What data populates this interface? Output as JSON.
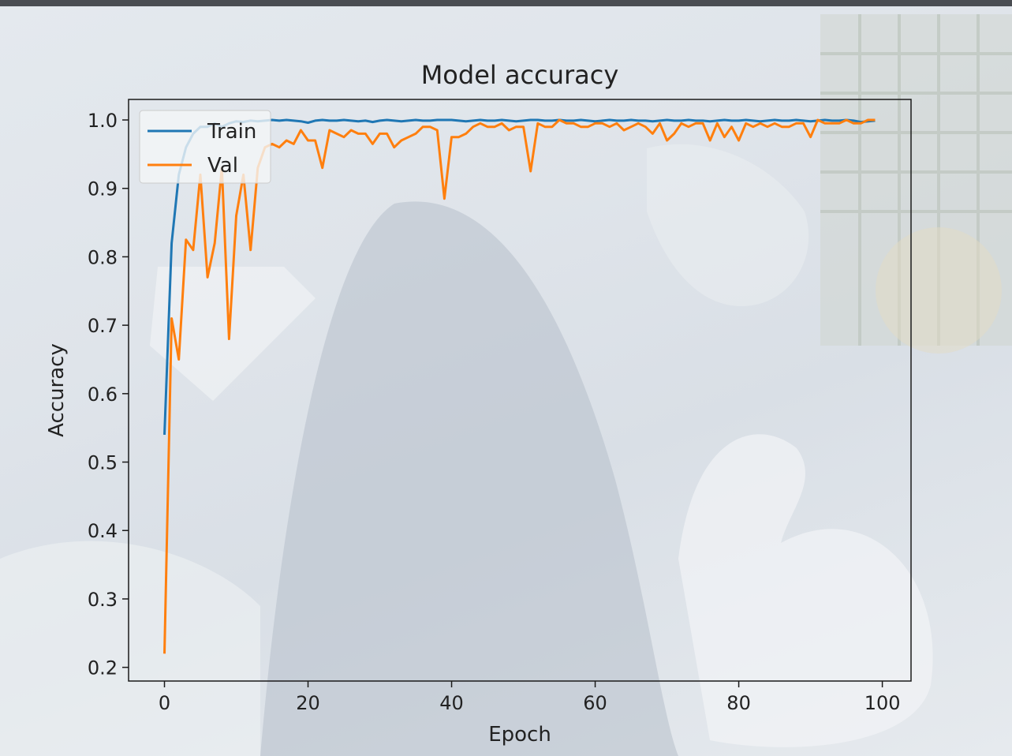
{
  "chart_data": {
    "type": "line",
    "title": "Model accuracy",
    "xlabel": "Epoch",
    "ylabel": "Accuracy",
    "xlim": [
      -5,
      104
    ],
    "ylim": [
      0.18,
      1.03
    ],
    "xticks": [
      0,
      20,
      40,
      60,
      80,
      100
    ],
    "yticks": [
      0.2,
      0.3,
      0.4,
      0.5,
      0.6,
      0.7,
      0.8,
      0.9,
      1.0
    ],
    "legend_position": "top-left",
    "grid": false,
    "series": [
      {
        "name": "Train",
        "color": "#1f77b4",
        "x": [
          0,
          1,
          2,
          3,
          4,
          5,
          6,
          7,
          8,
          9,
          10,
          11,
          12,
          13,
          14,
          15,
          16,
          17,
          18,
          19,
          20,
          21,
          22,
          23,
          24,
          25,
          26,
          27,
          28,
          29,
          30,
          31,
          32,
          33,
          34,
          35,
          36,
          37,
          38,
          39,
          40,
          41,
          42,
          43,
          44,
          45,
          46,
          47,
          48,
          49,
          50,
          51,
          52,
          53,
          54,
          55,
          56,
          57,
          58,
          59,
          60,
          61,
          62,
          63,
          64,
          65,
          66,
          67,
          68,
          69,
          70,
          71,
          72,
          73,
          74,
          75,
          76,
          77,
          78,
          79,
          80,
          81,
          82,
          83,
          84,
          85,
          86,
          87,
          88,
          89,
          90,
          91,
          92,
          93,
          94,
          95,
          96,
          97,
          98,
          99
        ],
        "values": [
          0.54,
          0.82,
          0.92,
          0.96,
          0.98,
          0.99,
          0.99,
          0.995,
          0.99,
          0.995,
          0.998,
          0.997,
          0.999,
          0.998,
          0.999,
          1.0,
          0.999,
          1.0,
          0.999,
          0.998,
          0.996,
          0.999,
          1.0,
          0.999,
          0.999,
          1.0,
          0.999,
          0.998,
          0.999,
          0.997,
          0.999,
          1.0,
          0.999,
          0.998,
          0.999,
          1.0,
          0.999,
          0.999,
          1.0,
          1.0,
          1.0,
          0.999,
          0.998,
          0.999,
          1.0,
          0.999,
          0.999,
          1.0,
          0.999,
          0.998,
          0.999,
          1.0,
          1.0,
          0.999,
          0.999,
          1.0,
          0.999,
          0.999,
          1.0,
          0.999,
          0.998,
          0.999,
          1.0,
          0.999,
          0.999,
          1.0,
          0.999,
          0.999,
          0.998,
          0.999,
          1.0,
          0.999,
          0.999,
          1.0,
          0.999,
          0.999,
          0.998,
          0.999,
          1.0,
          0.999,
          0.999,
          1.0,
          0.999,
          0.998,
          0.999,
          1.0,
          0.999,
          0.999,
          1.0,
          0.999,
          0.998,
          0.999,
          1.0,
          0.999,
          0.999,
          1.0,
          0.999,
          0.997,
          0.998,
          0.999
        ]
      },
      {
        "name": "Val",
        "color": "#ff7f0e",
        "x": [
          0,
          1,
          2,
          3,
          4,
          5,
          6,
          7,
          8,
          9,
          10,
          11,
          12,
          13,
          14,
          15,
          16,
          17,
          18,
          19,
          20,
          21,
          22,
          23,
          24,
          25,
          26,
          27,
          28,
          29,
          30,
          31,
          32,
          33,
          34,
          35,
          36,
          37,
          38,
          39,
          40,
          41,
          42,
          43,
          44,
          45,
          46,
          47,
          48,
          49,
          50,
          51,
          52,
          53,
          54,
          55,
          56,
          57,
          58,
          59,
          60,
          61,
          62,
          63,
          64,
          65,
          66,
          67,
          68,
          69,
          70,
          71,
          72,
          73,
          74,
          75,
          76,
          77,
          78,
          79,
          80,
          81,
          82,
          83,
          84,
          85,
          86,
          87,
          88,
          89,
          90,
          91,
          92,
          93,
          94,
          95,
          96,
          97,
          98,
          99
        ],
        "values": [
          0.22,
          0.71,
          0.65,
          0.825,
          0.81,
          0.92,
          0.77,
          0.82,
          0.93,
          0.68,
          0.86,
          0.92,
          0.81,
          0.93,
          0.96,
          0.965,
          0.96,
          0.97,
          0.965,
          0.985,
          0.97,
          0.97,
          0.93,
          0.985,
          0.98,
          0.975,
          0.985,
          0.98,
          0.98,
          0.965,
          0.98,
          0.98,
          0.96,
          0.97,
          0.975,
          0.98,
          0.99,
          0.99,
          0.985,
          0.885,
          0.975,
          0.975,
          0.98,
          0.99,
          0.995,
          0.99,
          0.99,
          0.995,
          0.985,
          0.99,
          0.99,
          0.925,
          0.995,
          0.99,
          0.99,
          1.0,
          0.995,
          0.995,
          0.99,
          0.99,
          0.995,
          0.995,
          0.99,
          0.995,
          0.985,
          0.99,
          0.995,
          0.99,
          0.98,
          0.995,
          0.97,
          0.98,
          0.995,
          0.99,
          0.995,
          0.995,
          0.97,
          0.995,
          0.975,
          0.99,
          0.97,
          0.995,
          0.99,
          0.995,
          0.99,
          0.995,
          0.99,
          0.99,
          0.995,
          0.995,
          0.975,
          1.0,
          0.995,
          0.995,
          0.995,
          1.0,
          0.995,
          0.995,
          1.0,
          1.0
        ]
      }
    ]
  }
}
